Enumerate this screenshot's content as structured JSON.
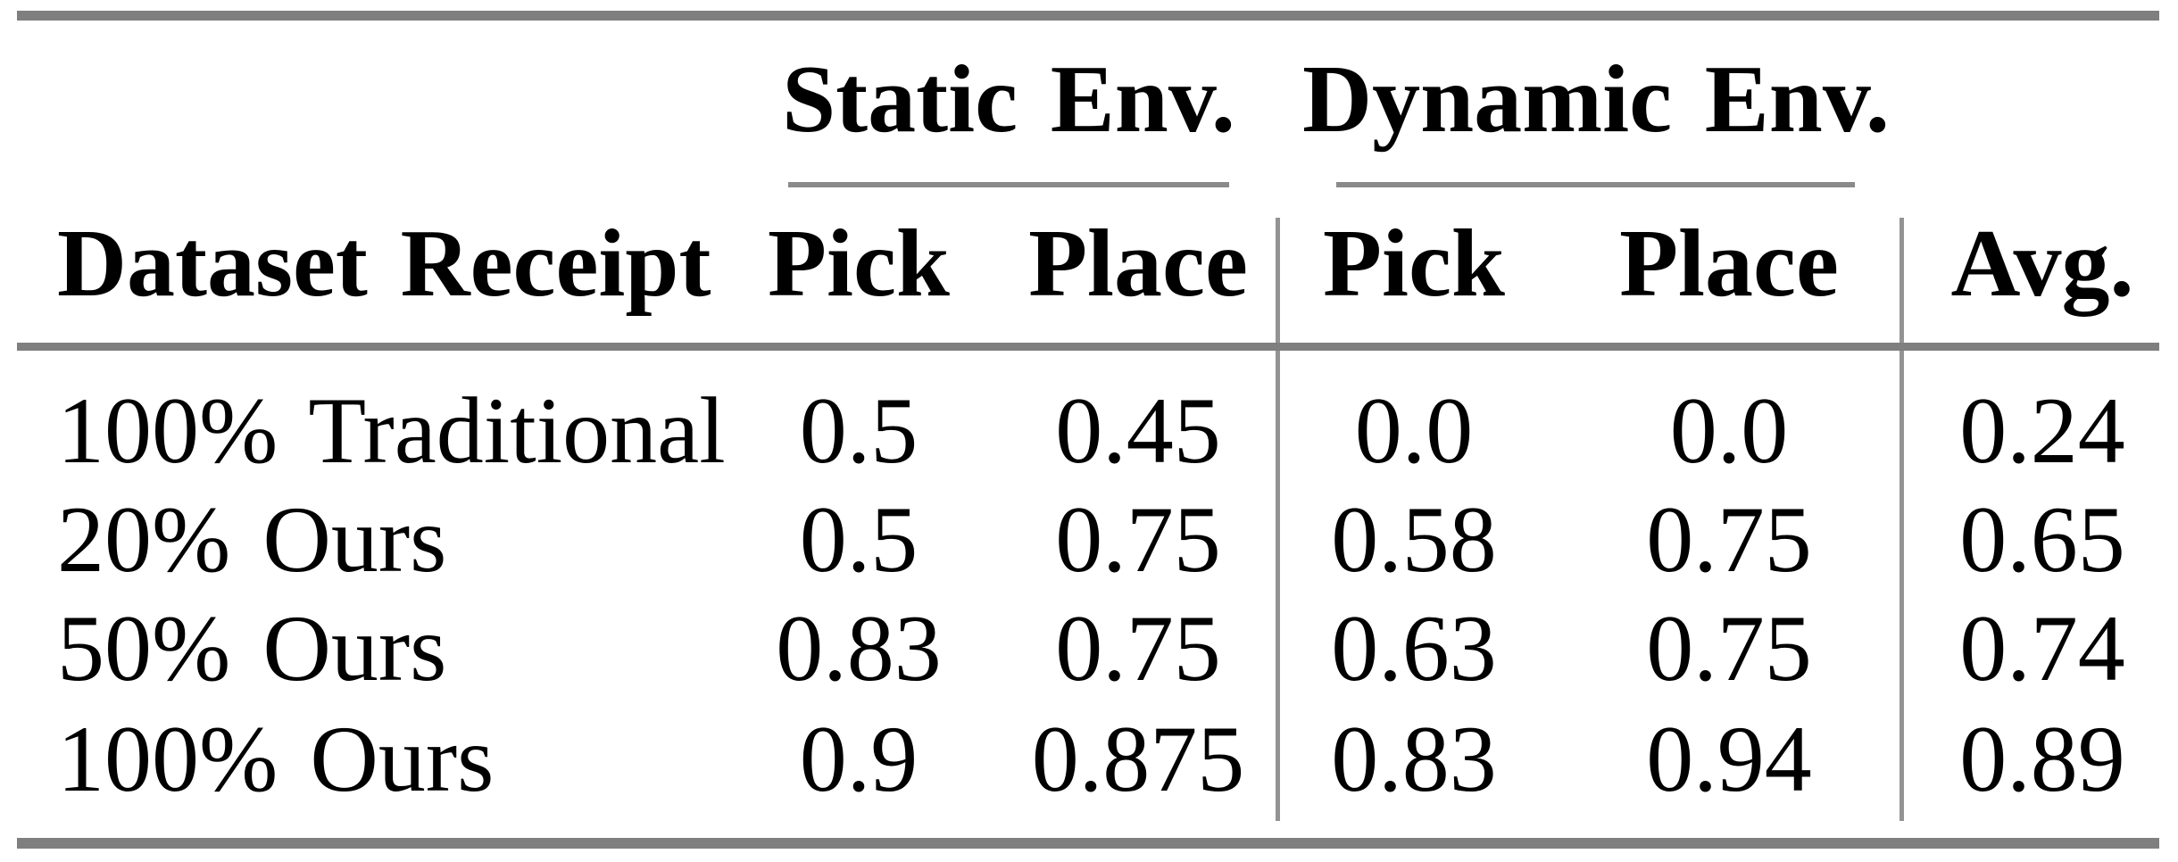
{
  "colors": {
    "thick_rule": "#7f7f7f",
    "thin_rule": "#8a8a8a",
    "vertical_rule": "#939393",
    "text": "#000000",
    "background": "#ffffff"
  },
  "table": {
    "groups": {
      "static": "Static Env.",
      "dynamic": "Dynamic Env."
    },
    "headers": {
      "dataset": "Dataset Receipt",
      "static_pick": "Pick",
      "static_place": "Place",
      "dynamic_pick": "Pick",
      "dynamic_place": "Place",
      "avg": "Avg."
    },
    "rows": [
      {
        "label": "100% Traditional",
        "static_pick": "0.5",
        "static_place": "0.45",
        "dynamic_pick": "0.0",
        "dynamic_place": "0.0",
        "avg": "0.24"
      },
      {
        "label": "20% Ours",
        "static_pick": "0.5",
        "static_place": "0.75",
        "dynamic_pick": "0.58",
        "dynamic_place": "0.75",
        "avg": "0.65"
      },
      {
        "label": "50% Ours",
        "static_pick": "0.83",
        "static_place": "0.75",
        "dynamic_pick": "0.63",
        "dynamic_place": "0.75",
        "avg": "0.74"
      },
      {
        "label": "100% Ours",
        "static_pick": "0.9",
        "static_place": "0.875",
        "dynamic_pick": "0.83",
        "dynamic_place": "0.94",
        "avg": "0.89"
      }
    ]
  },
  "chart_data": {
    "type": "table",
    "column_groups": [
      {
        "label": "Static Env.",
        "spans": [
          "Pick",
          "Place"
        ]
      },
      {
        "label": "Dynamic Env.",
        "spans": [
          "Pick",
          "Place"
        ]
      }
    ],
    "columns": [
      "Dataset Receipt",
      "Static Env. Pick",
      "Static Env. Place",
      "Dynamic Env. Pick",
      "Dynamic Env. Place",
      "Avg."
    ],
    "rows": [
      [
        "100% Traditional",
        0.5,
        0.45,
        0.0,
        0.0,
        0.24
      ],
      [
        "20% Ours",
        0.5,
        0.75,
        0.58,
        0.75,
        0.65
      ],
      [
        "50% Ours",
        0.83,
        0.75,
        0.63,
        0.75,
        0.74
      ],
      [
        "100% Ours",
        0.9,
        0.875,
        0.83,
        0.94,
        0.89
      ]
    ]
  }
}
